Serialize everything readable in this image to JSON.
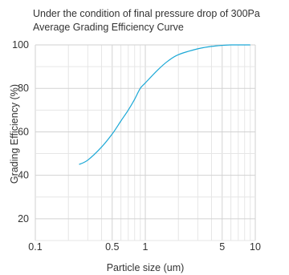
{
  "chart_data": {
    "type": "line",
    "title_lines": [
      "Under the condition of final pressure drop of 300Pa",
      "Average Grading Efficiency Curve"
    ],
    "xlabel": "Particle size (um)",
    "ylabel": "Grading Efficiency (%)",
    "x_scale": "log",
    "xlim": [
      0.1,
      10
    ],
    "ylim": [
      10,
      100
    ],
    "x_ticks": [
      {
        "value": 0.1,
        "label": "0.1"
      },
      {
        "value": 0.5,
        "label": "0.5"
      },
      {
        "value": 1,
        "label": "1"
      },
      {
        "value": 5,
        "label": "5"
      },
      {
        "value": 10,
        "label": "10"
      }
    ],
    "y_ticks": [
      {
        "value": 20,
        "label": "20"
      },
      {
        "value": 40,
        "label": "40"
      },
      {
        "value": 60,
        "label": "60"
      },
      {
        "value": 80,
        "label": "80"
      },
      {
        "value": 100,
        "label": "100"
      }
    ],
    "grid": true,
    "series": [
      {
        "color": "#1ba8d6",
        "x": [
          0.25,
          0.3,
          0.4,
          0.5,
          0.6,
          0.7,
          0.8,
          0.9,
          1.0,
          1.3,
          1.6,
          2.0,
          3.0,
          4.0,
          5.0,
          6.0,
          7.0,
          8.0,
          9.0
        ],
        "y": [
          45,
          47,
          53,
          59,
          65,
          70,
          75,
          80,
          82.5,
          88.5,
          92.5,
          95.5,
          98.2,
          99.3,
          99.8,
          100,
          100,
          100,
          100
        ]
      }
    ]
  }
}
